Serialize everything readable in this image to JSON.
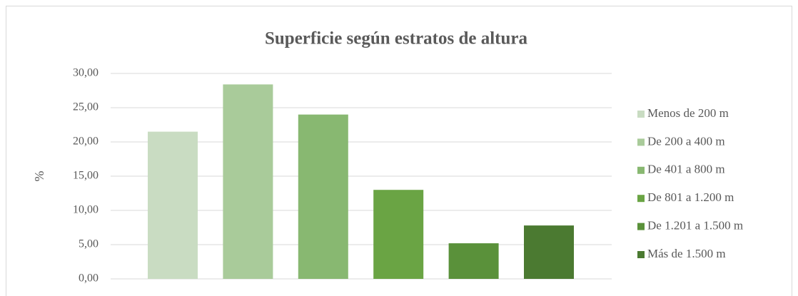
{
  "chart_data": {
    "type": "bar",
    "title": "Superficie según estratos de altura",
    "ylabel": "%",
    "series": [
      {
        "name": "Menos de 200 m",
        "color": "#c9dcc2",
        "values": [
          21.5
        ]
      },
      {
        "name": "De 200 a 400 m",
        "color": "#a9cb9a",
        "values": [
          28.4
        ]
      },
      {
        "name": "De 401 a 800 m",
        "color": "#88b871",
        "values": [
          24.0
        ]
      },
      {
        "name": "De 801 a 1.200 m",
        "color": "#6aa444",
        "values": [
          13.0
        ]
      },
      {
        "name": "De 1.201 a 1.500 m",
        "color": "#5a913a",
        "values": [
          5.2
        ]
      },
      {
        "name": "Más de 1.500 m",
        "color": "#4b7a31",
        "values": [
          7.8
        ]
      }
    ],
    "ylim": [
      0,
      30
    ],
    "yticks": [
      {
        "value": 0,
        "label": "0,00"
      },
      {
        "value": 5,
        "label": "5,00"
      },
      {
        "value": 10,
        "label": "10,00"
      },
      {
        "value": 15,
        "label": "15,00"
      },
      {
        "value": 20,
        "label": "20,00"
      },
      {
        "value": 25,
        "label": "25,00"
      },
      {
        "value": 30,
        "label": "30,00"
      }
    ],
    "grid": true,
    "legend": "right"
  }
}
